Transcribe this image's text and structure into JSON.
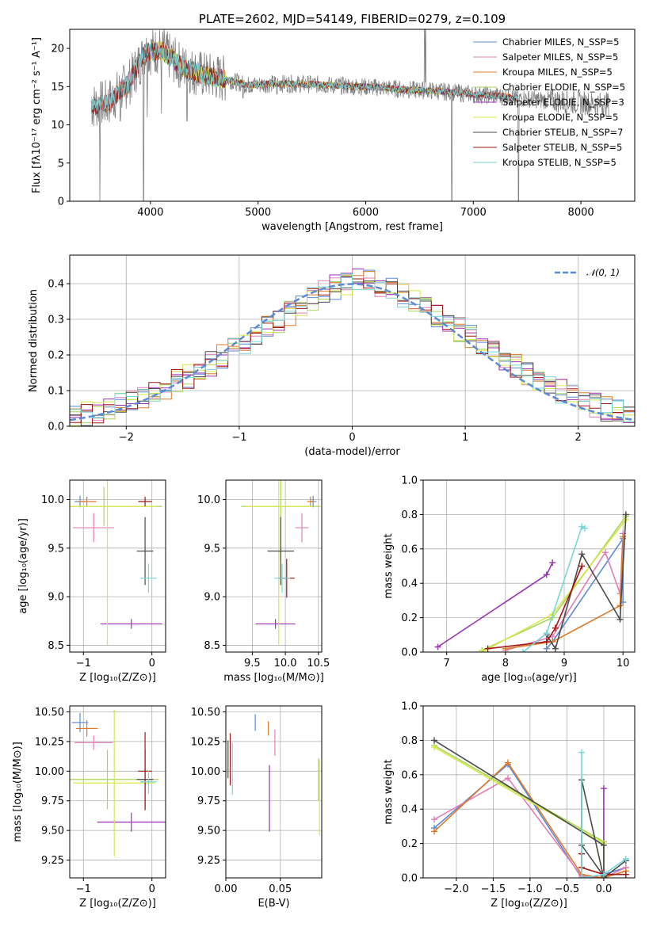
{
  "colors": {
    "chabrier_miles": "#5b8bd4",
    "salpeter_miles": "#e07fb8",
    "kroupa_miles": "#e07b28",
    "chabrier_elodie": "#a8d65c",
    "salpeter_elodie": "#9a32b4",
    "kroupa_elodie": "#d8e84a",
    "chabrier_stelib": "#4a4a4a",
    "salpeter_stelib": "#a01818",
    "kroupa_stelib": "#7ad6d6",
    "normal": "#5b8bd4",
    "data": "#808080"
  },
  "chart_data": [
    {
      "id": "spectrum",
      "type": "line",
      "title": "PLATE=2602, MJD=54149, FIBERID=0279, z=0.109",
      "xlabel": "wavelength [Angstrom, rest frame]",
      "ylabel": "Flux [fλ10⁻¹⁷ erg cm⁻² s⁻¹ A⁻¹]",
      "xlim": [
        3250,
        8500
      ],
      "ylim": [
        0,
        22.5
      ],
      "xticks": [
        "4000",
        "5000",
        "6000",
        "7000",
        "8000"
      ],
      "yticks": [
        "0",
        "5",
        "10",
        "15",
        "20"
      ],
      "legend": [
        "Chabrier MILES, N_SSP=5",
        "Salpeter MILES, N_SSP=5",
        "Kroupa MILES, N_SSP=5",
        "Chabrier ELODIE, N_SSP=5",
        "Salpeter ELODIE, N_SSP=3",
        "Kroupa ELODIE, N_SSP=5",
        "Chabrier STELIB, N_SSP=7",
        "Salpeter STELIB, N_SSP=5",
        "Kroupa STELIB, N_SSP=5"
      ],
      "continuum_x": [
        3450,
        3600,
        3800,
        3950,
        4100,
        4300,
        4500,
        4700,
        4900,
        5200,
        5500,
        5800,
        6100,
        6400,
        6700,
        7000,
        7300,
        7600,
        7900,
        8200
      ],
      "continuum_y": [
        12.5,
        12.8,
        15.5,
        19.5,
        19.8,
        17.5,
        16.5,
        16.0,
        15.2,
        15.4,
        15.3,
        15.1,
        14.9,
        14.6,
        14.4,
        14.0,
        13.7,
        13.3,
        13.0,
        12.7
      ],
      "dips_x": [
        3530,
        3720,
        3935,
        3970,
        4102,
        4340,
        4861,
        5175,
        5890,
        6563,
        6800,
        7420
      ],
      "dips_y": [
        0,
        10.5,
        0,
        11,
        11.5,
        10.5,
        13.5,
        14,
        14,
        14,
        0,
        0
      ]
    },
    {
      "id": "residuals",
      "type": "bar",
      "xlabel": "(data-model)/error",
      "ylabel": "Normed distribution",
      "xlim": [
        -2.5,
        2.5
      ],
      "ylim": [
        0,
        0.48
      ],
      "xticks": [
        "−2",
        "−1",
        "0",
        "1",
        "2"
      ],
      "yticks": [
        "0.0",
        "0.1",
        "0.2",
        "0.3",
        "0.4"
      ],
      "legend": [
        "𝒩(0, 1)"
      ],
      "bin_edges_start": -2.5,
      "bin_width": 0.1,
      "base_values": [
        0.03,
        0.035,
        0.04,
        0.048,
        0.058,
        0.07,
        0.083,
        0.096,
        0.11,
        0.125,
        0.14,
        0.157,
        0.175,
        0.194,
        0.213,
        0.233,
        0.254,
        0.275,
        0.296,
        0.317,
        0.338,
        0.357,
        0.375,
        0.39,
        0.402,
        0.41,
        0.405,
        0.395,
        0.382,
        0.367,
        0.35,
        0.332,
        0.312,
        0.292,
        0.271,
        0.25,
        0.229,
        0.208,
        0.188,
        0.168,
        0.149,
        0.131,
        0.114,
        0.098,
        0.084,
        0.07,
        0.058,
        0.048,
        0.04,
        0.034
      ]
    },
    {
      "id": "age_vs_Z",
      "type": "scatter",
      "xlabel": "Z [log₁₀(Z/Z⊙)]",
      "ylabel": "age  [log₁₀(age/yr)]",
      "xlim": [
        -1.2,
        0.2
      ],
      "ylim": [
        8.43,
        10.2
      ],
      "xticks": [
        "−1",
        "0"
      ],
      "yticks": [
        "8.5",
        "9.0",
        "9.5",
        "10.0"
      ],
      "points": [
        {
          "model": "chabrier_miles",
          "x": -1.05,
          "y": 9.98,
          "xerr": 0.08,
          "yerr": 0.06
        },
        {
          "model": "salpeter_miles",
          "x": -0.85,
          "y": 9.71,
          "xerr": 0.3,
          "yerr": 0.15
        },
        {
          "model": "kroupa_miles",
          "x": -0.95,
          "y": 9.98,
          "xerr": 0.14,
          "yerr": 0.05
        },
        {
          "model": "chabrier_elodie",
          "x": -0.7,
          "y": 9.93,
          "xerr": 0.85,
          "yerr": 0.2
        },
        {
          "model": "salpeter_elodie",
          "x": -0.3,
          "y": 8.72,
          "xerr": 0.45,
          "yerr": 0.05
        },
        {
          "model": "kroupa_elodie",
          "x": -0.65,
          "y": 9.93,
          "xerr": 0.72,
          "yerr": 1.43
        },
        {
          "model": "chabrier_stelib",
          "x": -0.1,
          "y": 9.47,
          "xerr": 0.12,
          "yerr": 0.35
        },
        {
          "model": "salpeter_stelib",
          "x": -0.1,
          "y": 9.98,
          "xerr": 0.1,
          "yerr": 0.05
        },
        {
          "model": "kroupa_stelib",
          "x": -0.05,
          "y": 9.19,
          "xerr": 0.12,
          "yerr": 0.15
        }
      ]
    },
    {
      "id": "age_vs_mass",
      "type": "scatter",
      "xlabel": "mass [log₁₀(M/M⊙)]",
      "ylabel": "",
      "xlim": [
        9.1,
        10.55
      ],
      "ylim": [
        8.43,
        10.2
      ],
      "xticks": [
        "9.5",
        "10.0",
        "10.5"
      ],
      "yticks": [
        "8.5",
        "9.0",
        "9.5",
        "10.0"
      ],
      "points": [
        {
          "model": "chabrier_miles",
          "x": 10.42,
          "y": 9.98,
          "xerr": 0.05,
          "yerr": 0.06
        },
        {
          "model": "salpeter_miles",
          "x": 10.25,
          "y": 9.71,
          "xerr": 0.1,
          "yerr": 0.15
        },
        {
          "model": "kroupa_miles",
          "x": 10.38,
          "y": 9.98,
          "xerr": 0.05,
          "yerr": 0.05
        },
        {
          "model": "chabrier_elodie",
          "x": 9.93,
          "y": 9.93,
          "xerr": 0.6,
          "yerr": 0.55
        },
        {
          "model": "salpeter_elodie",
          "x": 9.85,
          "y": 8.72,
          "xerr": 0.3,
          "yerr": 0.05
        },
        {
          "model": "kroupa_elodie",
          "x": 9.9,
          "y": 9.93,
          "xerr": 0.5,
          "yerr": 1.43
        },
        {
          "model": "chabrier_stelib",
          "x": 9.93,
          "y": 9.47,
          "xerr": 0.2,
          "yerr": 0.35
        },
        {
          "model": "salpeter_stelib",
          "x": 10.02,
          "y": 9.19,
          "xerr": 0.12,
          "yerr": 0.2
        },
        {
          "model": "kroupa_stelib",
          "x": 9.95,
          "y": 9.19,
          "xerr": 0.12,
          "yerr": 0.15
        }
      ]
    },
    {
      "id": "weight_vs_age",
      "type": "line",
      "xlabel": "age  [log₁₀(age/yr)]",
      "ylabel": "mass weight",
      "xlim": [
        6.6,
        10.2
      ],
      "ylim": [
        0,
        1
      ],
      "xticks": [
        "7",
        "8",
        "9",
        "10"
      ],
      "yticks": [
        "0.0",
        "0.2",
        "0.4",
        "0.6",
        "0.8",
        "1.0"
      ],
      "series": [
        {
          "model": "chabrier_miles",
          "x": [
            8.7,
            8.8,
            10.0,
            10.0
          ],
          "y": [
            0.02,
            0.06,
            0.66,
            0.29
          ]
        },
        {
          "model": "salpeter_miles",
          "x": [
            8.0,
            8.8,
            9.7,
            9.95,
            10.0
          ],
          "y": [
            0.01,
            0.09,
            0.58,
            0.34,
            0.69
          ]
        },
        {
          "model": "kroupa_miles",
          "x": [
            8.0,
            8.8,
            9.95,
            10.0
          ],
          "y": [
            0.02,
            0.06,
            0.27,
            0.67
          ]
        },
        {
          "model": "chabrier_elodie",
          "x": [
            7.6,
            8.8,
            10.05
          ],
          "y": [
            0.01,
            0.2,
            0.79
          ]
        },
        {
          "model": "salpeter_elodie",
          "x": [
            6.85,
            8.7,
            8.8
          ],
          "y": [
            0.03,
            0.45,
            0.52
          ]
        },
        {
          "model": "kroupa_elodie",
          "x": [
            7.6,
            8.8,
            10.05
          ],
          "y": [
            0.0,
            0.22,
            0.77
          ]
        },
        {
          "model": "chabrier_stelib",
          "x": [
            8.7,
            8.85,
            9.3,
            9.95,
            10.05
          ],
          "y": [
            0.1,
            0.02,
            0.57,
            0.19,
            0.8
          ]
        },
        {
          "model": "salpeter_stelib",
          "x": [
            7.7,
            8.7,
            8.85,
            9.3
          ],
          "y": [
            0.02,
            0.06,
            0.14,
            0.5
          ]
        },
        {
          "model": "kroupa_stelib",
          "x": [
            8.3,
            8.7,
            9.3,
            9.35
          ],
          "y": [
            0.0,
            0.11,
            0.73,
            0.72
          ]
        }
      ]
    },
    {
      "id": "mass_vs_Z",
      "type": "scatter",
      "xlabel": "Z [log₁₀(Z/Z⊙)]",
      "ylabel": "mass [log₁₀(M/M⊙)]",
      "xlim": [
        -1.2,
        0.2
      ],
      "ylim": [
        9.1,
        10.55
      ],
      "xticks": [
        "−1",
        "0"
      ],
      "yticks": [
        "9.25",
        "9.50",
        "9.75",
        "10.00",
        "10.25",
        "10.50"
      ],
      "points": [
        {
          "model": "chabrier_miles",
          "x": -1.05,
          "y": 10.41,
          "xerr": 0.12,
          "yerr": 0.08
        },
        {
          "model": "salpeter_miles",
          "x": -0.85,
          "y": 10.24,
          "xerr": 0.28,
          "yerr": 0.06
        },
        {
          "model": "kroupa_miles",
          "x": -0.95,
          "y": 10.36,
          "xerr": 0.16,
          "yerr": 0.07
        },
        {
          "model": "chabrier_elodie",
          "x": -0.65,
          "y": 9.93,
          "xerr": 0.75,
          "yerr": 0.25
        },
        {
          "model": "salpeter_elodie",
          "x": -0.3,
          "y": 9.57,
          "xerr": 0.5,
          "yerr": 0.08
        },
        {
          "model": "kroupa_elodie",
          "x": -0.55,
          "y": 9.9,
          "xerr": 0.6,
          "yerr": 0.62
        },
        {
          "model": "chabrier_stelib",
          "x": -0.1,
          "y": 9.93,
          "xerr": 0.12,
          "yerr": 0.25
        },
        {
          "model": "salpeter_stelib",
          "x": -0.1,
          "y": 10.0,
          "xerr": 0.1,
          "yerr": 0.33
        },
        {
          "model": "kroupa_stelib",
          "x": -0.05,
          "y": 9.91,
          "xerr": 0.12,
          "yerr": 0.1
        }
      ]
    },
    {
      "id": "mass_vs_ebv",
      "type": "scatter",
      "xlabel": "E(B-V)",
      "ylabel": "",
      "xlim": [
        0.0,
        0.088
      ],
      "ylim": [
        9.1,
        10.55
      ],
      "xticks": [
        "0.00",
        "0.05"
      ],
      "yticks": [
        "9.25",
        "9.50",
        "9.75",
        "10.00",
        "10.25",
        "10.50"
      ],
      "points": [
        {
          "model": "chabrier_miles",
          "x": 0.027,
          "y": 10.41,
          "xerr": 0,
          "yerr": 0.07
        },
        {
          "model": "salpeter_miles",
          "x": 0.045,
          "y": 10.24,
          "xerr": 0,
          "yerr": 0.11
        },
        {
          "model": "kroupa_miles",
          "x": 0.039,
          "y": 10.36,
          "xerr": 0,
          "yerr": 0.06
        },
        {
          "model": "chabrier_elodie",
          "x": 0.085,
          "y": 9.93,
          "xerr": 0,
          "yerr": 0.18
        },
        {
          "model": "salpeter_elodie",
          "x": 0.04,
          "y": 9.77,
          "xerr": 0,
          "yerr": 0.28
        },
        {
          "model": "kroupa_elodie",
          "x": 0.086,
          "y": 9.78,
          "xerr": 0,
          "yerr": 0.32
        },
        {
          "model": "chabrier_stelib",
          "x": 0.002,
          "y": 10.1,
          "xerr": 0,
          "yerr": 0.16
        },
        {
          "model": "salpeter_stelib",
          "x": 0.004,
          "y": 10.1,
          "xerr": 0,
          "yerr": 0.22
        },
        {
          "model": "kroupa_stelib",
          "x": 0.006,
          "y": 10.02,
          "xerr": 0,
          "yerr": 0.22
        }
      ]
    },
    {
      "id": "weight_vs_Z",
      "type": "line",
      "xlabel": "Z [log₁₀(Z/Z⊙)]",
      "ylabel": "mass weight",
      "xlim": [
        -2.45,
        0.42
      ],
      "ylim": [
        0,
        1
      ],
      "xticks": [
        "−2.0",
        "−1.5",
        "−1.0",
        "−0.5",
        "0.0"
      ],
      "yticks": [
        "0.0",
        "0.2",
        "0.4",
        "0.6",
        "0.8",
        "1.0"
      ],
      "series": [
        {
          "model": "chabrier_miles",
          "x": [
            -2.3,
            -1.3,
            -0.3,
            0.0,
            0.3
          ],
          "y": [
            0.29,
            0.66,
            0.0,
            0.02,
            0.06
          ]
        },
        {
          "model": "salpeter_miles",
          "x": [
            -2.3,
            -1.3,
            -0.3,
            0.0,
            0.3
          ],
          "y": [
            0.34,
            0.58,
            0.01,
            0.0,
            0.06
          ]
        },
        {
          "model": "kroupa_miles",
          "x": [
            -2.3,
            -1.3,
            -0.3,
            0.0,
            0.3
          ],
          "y": [
            0.27,
            0.67,
            0.02,
            0.0,
            0.04
          ]
        },
        {
          "model": "chabrier_elodie",
          "x": [
            -2.3,
            0.0,
            0.0
          ],
          "y": [
            0.77,
            0.21,
            0.02
          ]
        },
        {
          "model": "salpeter_elodie",
          "x": [
            0.0,
            0.0
          ],
          "y": [
            0.52,
            0.03
          ]
        },
        {
          "model": "kroupa_elodie",
          "x": [
            -2.3,
            0.0,
            0.0
          ],
          "y": [
            0.76,
            0.2,
            0.02
          ]
        },
        {
          "model": "chabrier_stelib",
          "x": [
            -2.3,
            0.0,
            0.0,
            -0.3,
            -0.3,
            0.0,
            0.3
          ],
          "y": [
            0.8,
            0.19,
            0.01,
            0.19,
            0.57,
            0.0,
            0.1
          ]
        },
        {
          "model": "salpeter_stelib",
          "x": [
            -0.3,
            -0.3,
            0.0,
            0.3
          ],
          "y": [
            0.14,
            0.06,
            0.02,
            0.02
          ]
        },
        {
          "model": "kroupa_stelib",
          "x": [
            -0.3,
            -0.3,
            0.0,
            0.3
          ],
          "y": [
            0.73,
            0.0,
            0.02,
            0.11
          ]
        }
      ]
    }
  ]
}
